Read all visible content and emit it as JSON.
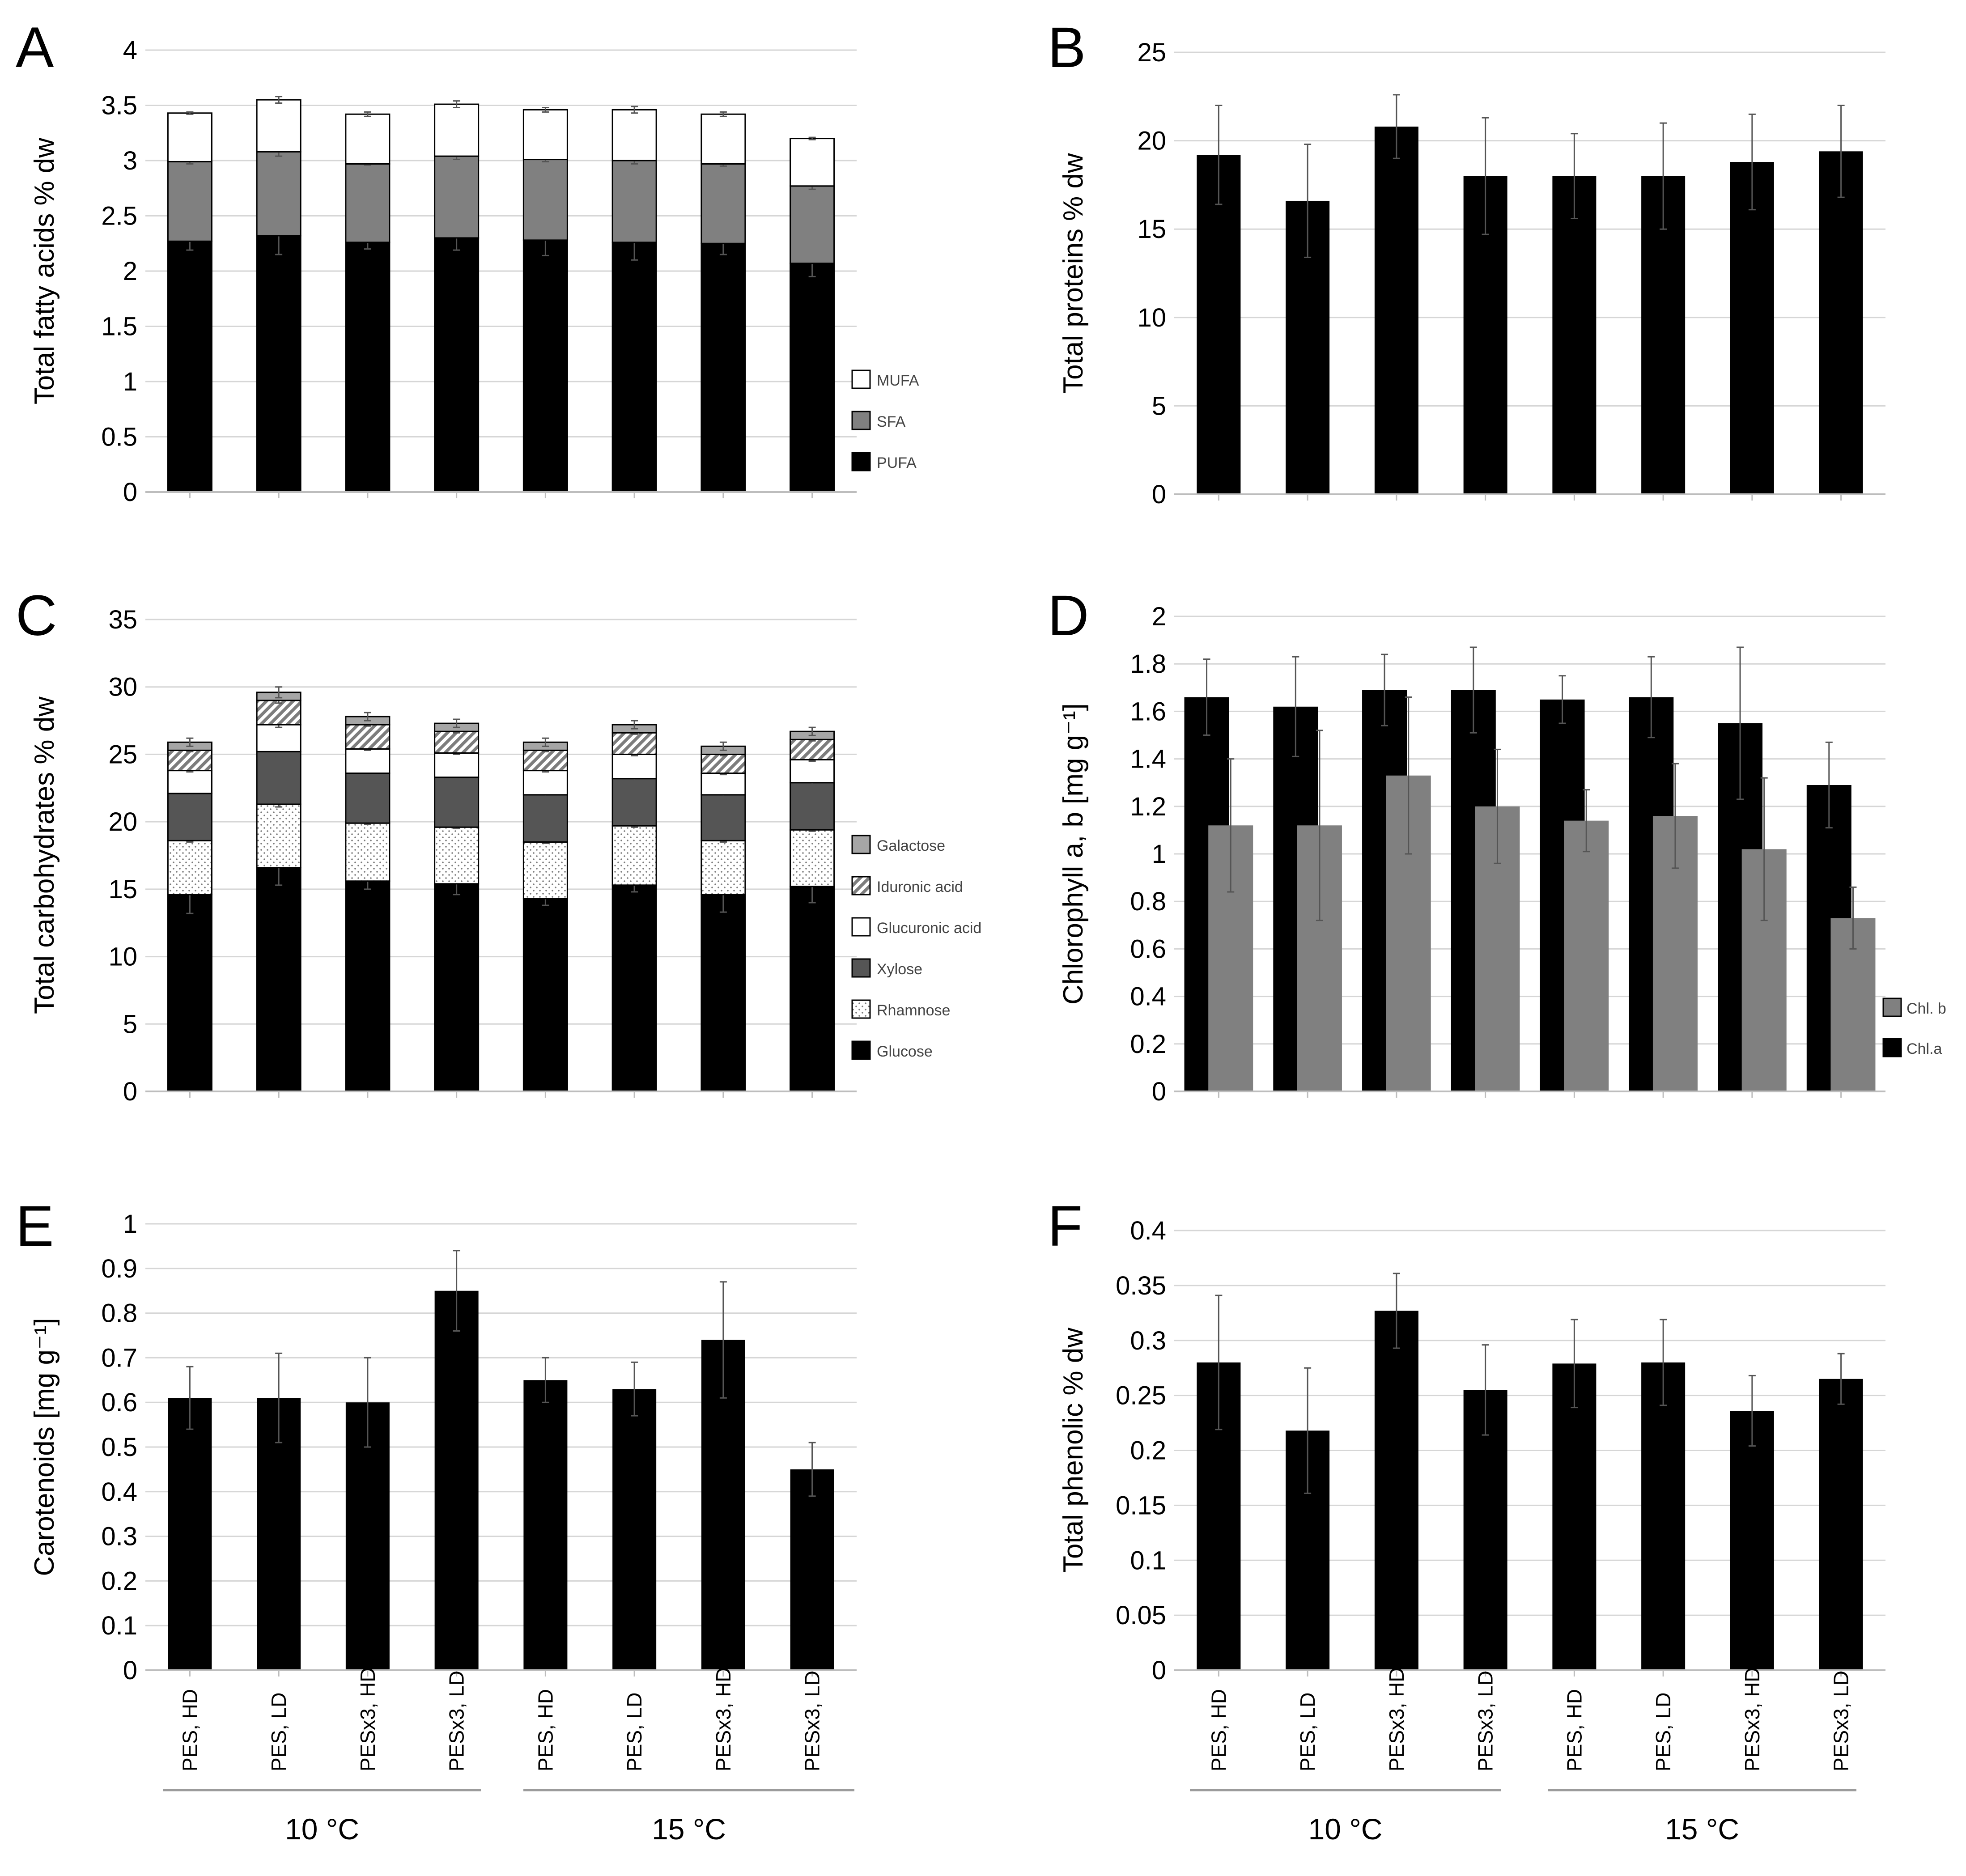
{
  "chart_data": [
    {
      "panel": "A",
      "type": "bar",
      "stacked": true,
      "ylabel": "Total fatty acids % dw",
      "ylim": [
        0,
        4
      ],
      "yticks": [
        "0",
        "0.5",
        "1",
        "1.5",
        "2",
        "2.5",
        "3",
        "3.5",
        "4"
      ],
      "ytick_values": [
        0,
        0.5,
        1,
        1.5,
        2,
        2.5,
        3,
        3.5,
        4
      ],
      "grid": true,
      "legend_position": "right",
      "series": [
        {
          "name": "PUFA",
          "color": "#000000",
          "values": [
            2.27,
            2.32,
            2.26,
            2.3,
            2.28,
            2.26,
            2.25,
            2.07
          ],
          "errors": [
            0.08,
            0.17,
            0.06,
            0.11,
            0.14,
            0.16,
            0.1,
            0.12
          ]
        },
        {
          "name": "SFA",
          "color": "#808080",
          "values": [
            0.72,
            0.76,
            0.71,
            0.74,
            0.73,
            0.74,
            0.72,
            0.7
          ],
          "errors": [
            0.02,
            0.04,
            0.01,
            0.03,
            0.02,
            0.03,
            0.02,
            0.03
          ]
        },
        {
          "name": "MUFA",
          "color": "#ffffff",
          "values": [
            0.44,
            0.47,
            0.45,
            0.47,
            0.45,
            0.46,
            0.45,
            0.43
          ],
          "errors": [
            0.01,
            0.03,
            0.02,
            0.03,
            0.02,
            0.03,
            0.02,
            0.01
          ]
        }
      ]
    },
    {
      "panel": "B",
      "type": "bar",
      "ylabel": "Total proteins % dw",
      "ylim": [
        0,
        25
      ],
      "yticks": [
        "0",
        "5",
        "10",
        "15",
        "20",
        "25"
      ],
      "ytick_values": [
        0,
        5,
        10,
        15,
        20,
        25
      ],
      "grid": true,
      "series": [
        {
          "name": "Total proteins",
          "color": "#000000",
          "values": [
            19.2,
            16.6,
            20.8,
            18.0,
            18.0,
            18.0,
            18.8,
            19.4
          ],
          "errors": [
            2.8,
            3.2,
            1.8,
            3.3,
            2.4,
            3.0,
            2.7,
            2.6
          ]
        }
      ]
    },
    {
      "panel": "C",
      "type": "bar",
      "stacked": true,
      "ylabel": "Total carbohydrates % dw",
      "ylim": [
        0,
        35
      ],
      "yticks": [
        "0",
        "5",
        "10",
        "15",
        "20",
        "25",
        "30",
        "35"
      ],
      "ytick_values": [
        0,
        5,
        10,
        15,
        20,
        25,
        30,
        35
      ],
      "grid": true,
      "legend_position": "right",
      "series": [
        {
          "name": "Glucose",
          "color": "#000000",
          "values": [
            14.6,
            16.6,
            15.6,
            15.4,
            14.3,
            15.3,
            14.6,
            15.2
          ],
          "errors": [
            1.4,
            1.3,
            0.6,
            0.8,
            0.5,
            0.5,
            1.3,
            1.2
          ]
        },
        {
          "name": "Rhamnose",
          "color": "#ffffff",
          "values": [
            4.0,
            4.7,
            4.3,
            4.2,
            4.2,
            4.4,
            4.0,
            4.2
          ],
          "errors": [
            0.1,
            0.2,
            0.1,
            0.1,
            0.1,
            0.1,
            0.1,
            0.1
          ]
        },
        {
          "name": "Xylose",
          "color": "#555555",
          "values": [
            3.5,
            3.9,
            3.7,
            3.7,
            3.5,
            3.5,
            3.4,
            3.5
          ],
          "errors": [
            0.2,
            0.4,
            0.2,
            0.2,
            0.2,
            0.2,
            0.3,
            0.2
          ]
        },
        {
          "name": "Glucuronic acid",
          "color": "#ffffff",
          "values": [
            1.7,
            2.0,
            1.8,
            1.8,
            1.8,
            1.8,
            1.6,
            1.7
          ],
          "errors": [
            0.1,
            0.2,
            0.1,
            0.1,
            0.1,
            0.1,
            0.1,
            0.1
          ]
        },
        {
          "name": "Iduronic acid",
          "color": "#cccccc",
          "values": [
            1.5,
            1.8,
            1.8,
            1.6,
            1.5,
            1.6,
            1.4,
            1.5
          ],
          "errors": [
            0.1,
            0.2,
            0.1,
            0.1,
            0.1,
            0.1,
            0.1,
            0.1
          ]
        },
        {
          "name": "Galactose",
          "color": "#a6a6a6",
          "values": [
            0.6,
            0.6,
            0.6,
            0.6,
            0.6,
            0.6,
            0.6,
            0.6
          ],
          "errors": [
            0.3,
            0.4,
            0.3,
            0.3,
            0.3,
            0.3,
            0.3,
            0.3
          ]
        }
      ]
    },
    {
      "panel": "D",
      "type": "bar",
      "ylabel": "Chlorophyll a, b [mg g⁻¹]",
      "ylim": [
        0,
        2
      ],
      "yticks": [
        "0",
        "0.2",
        "0.4",
        "0.6",
        "0.8",
        "1",
        "1.2",
        "1.4",
        "1.6",
        "1.8",
        "2"
      ],
      "ytick_values": [
        0,
        0.2,
        0.4,
        0.6,
        0.8,
        1,
        1.2,
        1.4,
        1.6,
        1.8,
        2
      ],
      "grid": true,
      "legend_position": "right",
      "series": [
        {
          "name": "Chl.a",
          "color": "#000000",
          "values": [
            1.66,
            1.62,
            1.69,
            1.69,
            1.65,
            1.66,
            1.55,
            1.29
          ],
          "errors": [
            0.16,
            0.21,
            0.15,
            0.18,
            0.1,
            0.17,
            0.32,
            0.18
          ]
        },
        {
          "name": "Chl. b",
          "color": "#808080",
          "values": [
            1.12,
            1.12,
            1.33,
            1.2,
            1.14,
            1.16,
            1.02,
            0.73
          ],
          "errors": [
            0.28,
            0.4,
            0.33,
            0.24,
            0.13,
            0.22,
            0.3,
            0.13
          ]
        }
      ]
    },
    {
      "panel": "E",
      "type": "bar",
      "ylabel": "Carotenoids [mg g⁻¹]",
      "ylim": [
        0,
        1
      ],
      "yticks": [
        "0",
        "0.1",
        "0.2",
        "0.3",
        "0.4",
        "0.5",
        "0.6",
        "0.7",
        "0.8",
        "0.9",
        "1"
      ],
      "ytick_values": [
        0,
        0.1,
        0.2,
        0.3,
        0.4,
        0.5,
        0.6,
        0.7,
        0.8,
        0.9,
        1
      ],
      "grid": true,
      "series": [
        {
          "name": "Carotenoids",
          "color": "#000000",
          "values": [
            0.61,
            0.61,
            0.6,
            0.85,
            0.65,
            0.63,
            0.74,
            0.45
          ],
          "errors": [
            0.07,
            0.1,
            0.1,
            0.09,
            0.05,
            0.06,
            0.13,
            0.06
          ]
        }
      ]
    },
    {
      "panel": "F",
      "type": "bar",
      "ylabel": "Total phenolic % dw",
      "ylim": [
        0,
        0.4
      ],
      "yticks": [
        "0",
        "0.05",
        "0.1",
        "0.15",
        "0.2",
        "0.25",
        "0.3",
        "0.35",
        "0.4"
      ],
      "ytick_values": [
        0,
        0.05,
        0.1,
        0.15,
        0.2,
        0.25,
        0.3,
        0.35,
        0.4
      ],
      "grid": true,
      "series": [
        {
          "name": "Total phenolic",
          "color": "#000000",
          "values": [
            0.28,
            0.218,
            0.327,
            0.255,
            0.279,
            0.28,
            0.236,
            0.265
          ],
          "errors": [
            0.061,
            0.057,
            0.034,
            0.041,
            0.04,
            0.039,
            0.032,
            0.023
          ]
        }
      ]
    }
  ],
  "categories": [
    "PES, HD",
    "PES, LD",
    "PESx3, HD",
    "PESx3, LD",
    "PES, HD",
    "PES, LD",
    "PESx3, HD",
    "PESx3, LD"
  ],
  "temperature_groups": [
    "10 °C",
    "15 °C"
  ]
}
